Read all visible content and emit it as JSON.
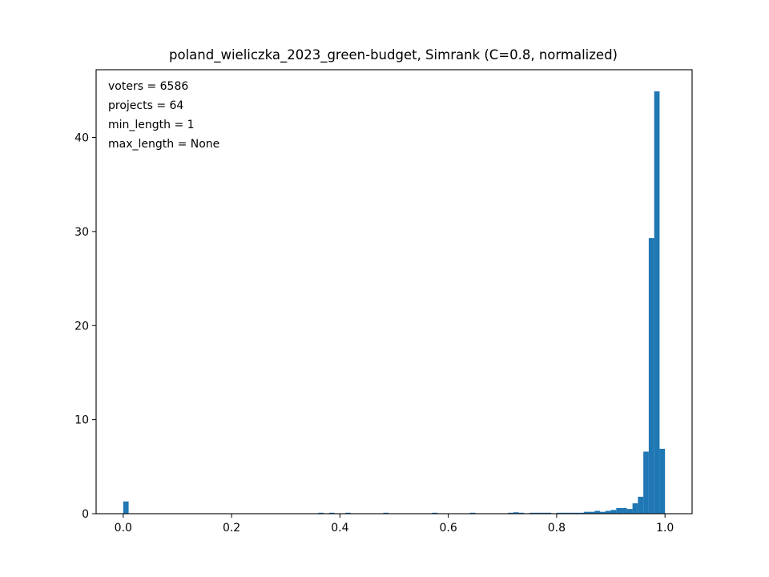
{
  "chart_data": {
    "type": "bar",
    "title": "poland_wieliczka_2023_green-budget, Simrank (C=0.8, normalized)",
    "xlabel": "",
    "ylabel": "",
    "xlim": [
      -0.05,
      1.05
    ],
    "ylim": [
      0,
      47.2
    ],
    "xticks": [
      0.0,
      0.2,
      0.4,
      0.6,
      0.8,
      1.0
    ],
    "xtick_labels": [
      "0.0",
      "0.2",
      "0.4",
      "0.6",
      "0.8",
      "1.0"
    ],
    "yticks": [
      0,
      10,
      20,
      30,
      40
    ],
    "ytick_labels": [
      "0",
      "10",
      "20",
      "30",
      "40"
    ],
    "bin_width": 0.01,
    "bar_color": "#1f77b4",
    "annotations": [
      "voters = 6586",
      "projects = 64",
      "min_length = 1",
      "max_length = None"
    ],
    "bins": [
      {
        "x": 0.0,
        "value": 1.3
      },
      {
        "x": 0.36,
        "value": 0.1
      },
      {
        "x": 0.38,
        "value": 0.1
      },
      {
        "x": 0.41,
        "value": 0.1
      },
      {
        "x": 0.48,
        "value": 0.1
      },
      {
        "x": 0.57,
        "value": 0.1
      },
      {
        "x": 0.64,
        "value": 0.1
      },
      {
        "x": 0.71,
        "value": 0.1
      },
      {
        "x": 0.72,
        "value": 0.15
      },
      {
        "x": 0.73,
        "value": 0.1
      },
      {
        "x": 0.75,
        "value": 0.1
      },
      {
        "x": 0.76,
        "value": 0.1
      },
      {
        "x": 0.77,
        "value": 0.1
      },
      {
        "x": 0.78,
        "value": 0.1
      },
      {
        "x": 0.8,
        "value": 0.1
      },
      {
        "x": 0.81,
        "value": 0.1
      },
      {
        "x": 0.82,
        "value": 0.1
      },
      {
        "x": 0.83,
        "value": 0.1
      },
      {
        "x": 0.84,
        "value": 0.1
      },
      {
        "x": 0.85,
        "value": 0.2
      },
      {
        "x": 0.86,
        "value": 0.2
      },
      {
        "x": 0.87,
        "value": 0.3
      },
      {
        "x": 0.88,
        "value": 0.2
      },
      {
        "x": 0.89,
        "value": 0.3
      },
      {
        "x": 0.9,
        "value": 0.4
      },
      {
        "x": 0.91,
        "value": 0.6
      },
      {
        "x": 0.92,
        "value": 0.6
      },
      {
        "x": 0.93,
        "value": 0.5
      },
      {
        "x": 0.94,
        "value": 1.1
      },
      {
        "x": 0.95,
        "value": 1.8
      },
      {
        "x": 0.96,
        "value": 6.6
      },
      {
        "x": 0.97,
        "value": 29.3
      },
      {
        "x": 0.98,
        "value": 44.9
      },
      {
        "x": 0.99,
        "value": 6.9
      }
    ]
  }
}
